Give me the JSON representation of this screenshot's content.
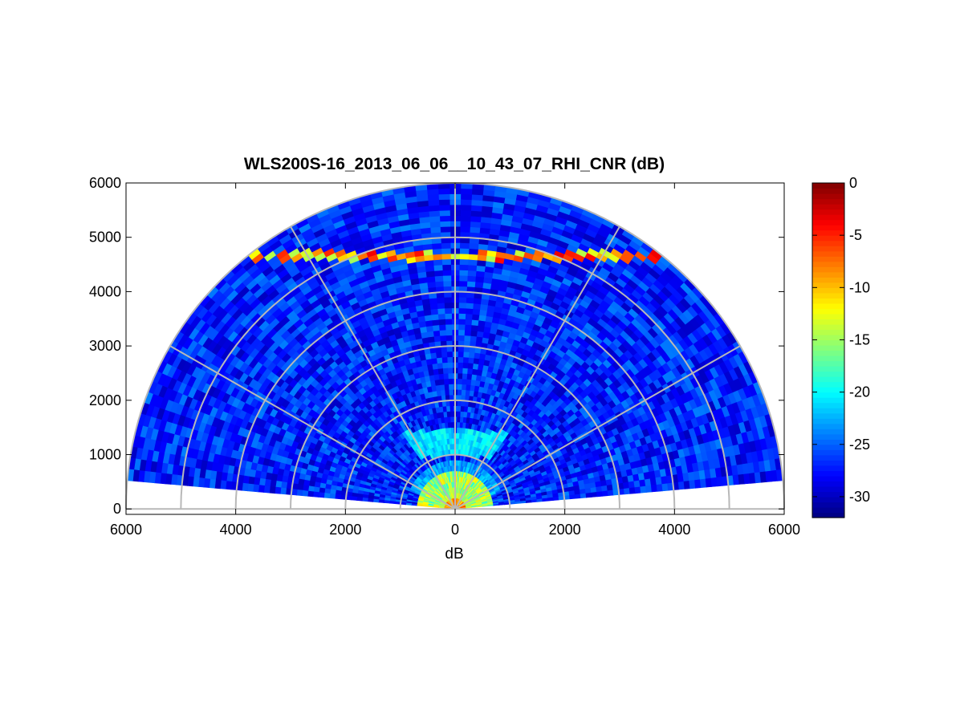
{
  "chart_data": {
    "type": "heatmap",
    "projection": "polar-rhi",
    "title": "WLS200S-16_2013_06_06__10_43_07_RHI_CNR (dB)",
    "xlabel": "dB",
    "ylabel": "",
    "x_ticks": [
      "6000",
      "4000",
      "2000",
      "0",
      "2000",
      "4000",
      "6000"
    ],
    "y_ticks": [
      "0",
      "1000",
      "2000",
      "3000",
      "4000",
      "5000",
      "6000"
    ],
    "xlim": [
      -6000,
      6000
    ],
    "ylim": [
      -100,
      6000
    ],
    "range_rings_m": [
      1000,
      2000,
      3000,
      4000,
      5000,
      6000
    ],
    "spoke_angles_deg": [
      0,
      30,
      60,
      90,
      120,
      150,
      180
    ],
    "max_range_m": 6000,
    "elevation_range_deg": [
      5,
      175
    ],
    "gate_length_m": 100,
    "colormap": "jet",
    "colorbar": {
      "min": -32,
      "max": 0,
      "ticks": [
        "0",
        "-5",
        "-10",
        "-15",
        "-20",
        "-25",
        "-30"
      ]
    },
    "background_cnr_db": -27,
    "features": [
      {
        "name": "aerosol layer top",
        "altitude_m": 4650,
        "cnr_db": -3,
        "spans_elev_deg": [
          5,
          175
        ]
      },
      {
        "name": "near-range boundary layer",
        "range_m": [
          50,
          700
        ],
        "cnr_db": -15
      },
      {
        "name": "enhanced return aloft",
        "altitude_m": 1200,
        "cnr_db": -21
      }
    ]
  }
}
